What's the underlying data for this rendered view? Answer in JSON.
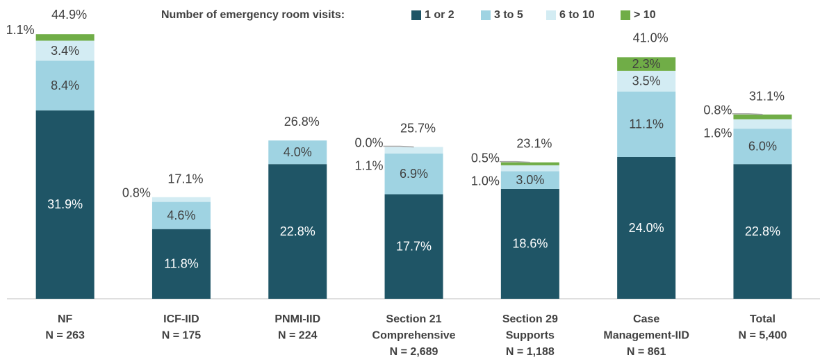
{
  "chart_data": {
    "type": "stacked_bar",
    "legend_title": "Number of emergency room visits:",
    "categories": [
      [
        "NF",
        "N = 263"
      ],
      [
        "ICF-IID",
        "N = 175"
      ],
      [
        "PNMI-IID",
        "N = 224"
      ],
      [
        "Section 21",
        "Comprehensive",
        "N = 2,689"
      ],
      [
        "Section 29",
        "Supports",
        "N = 1,188"
      ],
      [
        "Case",
        "Management-IID",
        "N = 861"
      ],
      [
        "Total",
        "N = 5,400"
      ]
    ],
    "series": [
      {
        "name": "1 or 2",
        "color": "#1f5566",
        "values": [
          31.9,
          11.8,
          22.8,
          17.7,
          18.6,
          24.0,
          22.8
        ],
        "value_labels": [
          "31.9%",
          "11.8%",
          "22.8%",
          "17.7%",
          "18.6%",
          "24.0%",
          "22.8%"
        ]
      },
      {
        "name": "3 to 5",
        "color": "#9fd3e2",
        "values": [
          8.4,
          4.6,
          4.0,
          6.9,
          3.0,
          11.1,
          6.0
        ],
        "value_labels": [
          "8.4%",
          "4.6%",
          "4.0%",
          "6.9%",
          "3.0%",
          "11.1%",
          "6.0%"
        ]
      },
      {
        "name": "6 to 10",
        "color": "#d3ecf3",
        "values": [
          3.4,
          0.8,
          null,
          1.1,
          1.0,
          3.5,
          1.6
        ],
        "value_labels": [
          "3.4%",
          "0.8%",
          null,
          "1.1%",
          "1.0%",
          "3.5%",
          "1.6%"
        ]
      },
      {
        "name": "> 10",
        "color": "#70ad47",
        "values": [
          1.1,
          null,
          null,
          0.0,
          0.5,
          2.3,
          0.8
        ],
        "value_labels": [
          "1.1%",
          null,
          null,
          "0.0%",
          "0.5%",
          "2.3%",
          "0.8%"
        ]
      }
    ],
    "totals": [
      44.9,
      17.1,
      26.8,
      25.7,
      23.1,
      41.0,
      31.1
    ],
    "total_labels": [
      "44.9%",
      "17.1%",
      "26.8%",
      "25.7%",
      "23.1%",
      "41.0%",
      "31.1%"
    ],
    "ylim": [
      0,
      50
    ]
  }
}
